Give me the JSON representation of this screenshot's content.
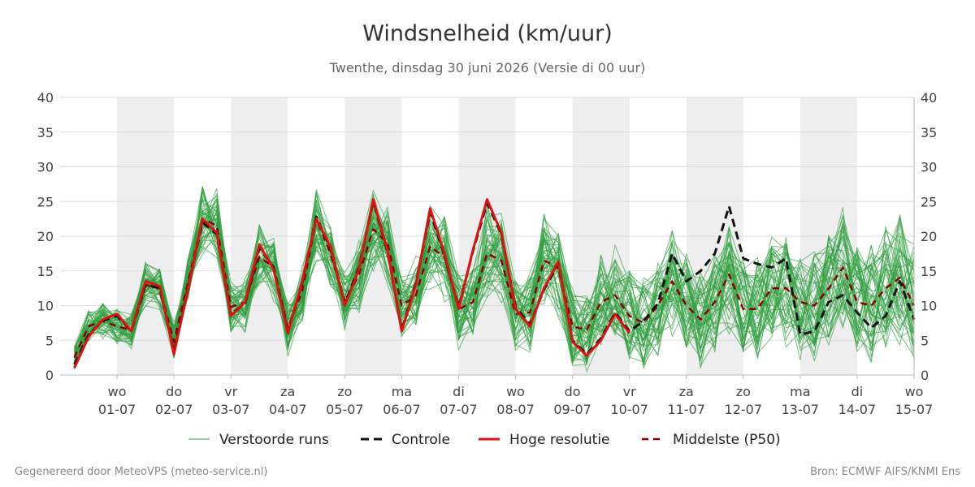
{
  "title": "Windsnelheid (km/uur)",
  "subtitle": "Twenthe, dinsdag 30 juni 2026 (Versie di 00 uur)",
  "footer_left": "Gegenereerd door MeteoVPS (meteo-service.nl)",
  "footer_right": "Bron: ECMWF AIFS/KNMI Ens",
  "colors": {
    "ensemble": "#2e9e3e",
    "control": "#111111",
    "high_res": "#e01010",
    "median": "#8b0000",
    "shade": "#eeeeee",
    "grid": "#dddddd"
  },
  "legend": [
    {
      "label": "Verstoorde runs",
      "style": "ensemble"
    },
    {
      "label": "Controle",
      "style": "control"
    },
    {
      "label": "Hoge resolutie",
      "style": "high_res"
    },
    {
      "label": "Middelste (P50)",
      "style": "median"
    }
  ],
  "chart_data": {
    "type": "line",
    "y_range": [
      0,
      40
    ],
    "y_ticks": [
      0,
      5,
      10,
      15,
      20,
      25,
      30,
      35,
      40
    ],
    "x_range_days_from_2026-06-30T00": [
      0.25,
      15.0
    ],
    "x_ticks": [
      {
        "day": "wo",
        "date": "01-07"
      },
      {
        "day": "do",
        "date": "02-07"
      },
      {
        "day": "vr",
        "date": "03-07"
      },
      {
        "day": "za",
        "date": "04-07"
      },
      {
        "day": "zo",
        "date": "05-07"
      },
      {
        "day": "ma",
        "date": "06-07"
      },
      {
        "day": "di",
        "date": "07-07"
      },
      {
        "day": "wo",
        "date": "08-07"
      },
      {
        "day": "do",
        "date": "09-07"
      },
      {
        "day": "vr",
        "date": "10-07"
      },
      {
        "day": "za",
        "date": "11-07"
      },
      {
        "day": "zo",
        "date": "12-07"
      },
      {
        "day": "ma",
        "date": "13-07"
      },
      {
        "day": "di",
        "date": "14-07"
      },
      {
        "day": "wo",
        "date": "15-07"
      }
    ],
    "shaded_days": [
      "01-07",
      "03-07",
      "05-07",
      "07-07",
      "09-07",
      "11-07",
      "13-07"
    ],
    "grid": true,
    "legend_position": "bottom",
    "series": [
      {
        "name": "Hoge resolutie",
        "x": [
          0.25,
          0.5,
          0.75,
          1.0,
          1.25,
          1.5,
          1.75,
          2.0,
          2.25,
          2.5,
          2.75,
          3.0,
          3.25,
          3.5,
          3.75,
          4.0,
          4.25,
          4.5,
          4.75,
          5.0,
          5.25,
          5.5,
          5.75,
          6.0,
          6.25,
          6.5,
          6.75,
          7.0,
          7.25,
          7.5,
          7.75,
          8.0,
          8.25,
          8.5,
          8.75,
          9.0,
          9.25,
          9.5,
          9.75,
          10.0
        ],
        "y": [
          1.0,
          5.5,
          8.0,
          8.8,
          6.3,
          13.5,
          12.8,
          3.0,
          12.5,
          22.5,
          20.5,
          8.5,
          10.5,
          18.8,
          15.2,
          6.0,
          13.5,
          22.5,
          18.5,
          10.0,
          15.2,
          25.3,
          18.0,
          6.3,
          13.0,
          24.0,
          17.5,
          9.5,
          18.0,
          25.3,
          20.5,
          9.5,
          7.0,
          12.5,
          16.3,
          4.8,
          2.8,
          5.0,
          8.8,
          6.0
        ]
      },
      {
        "name": "Controle",
        "x": [
          0.25,
          0.5,
          0.75,
          1.0,
          1.25,
          1.5,
          1.75,
          2.0,
          2.25,
          2.5,
          2.75,
          3.0,
          3.25,
          3.5,
          3.75,
          4.0,
          4.25,
          4.5,
          4.75,
          5.0,
          5.25,
          5.5,
          5.75,
          6.0,
          6.25,
          6.5,
          6.75,
          7.0,
          7.25,
          7.5,
          7.75,
          8.0,
          8.25,
          8.5,
          8.75,
          9.0,
          9.25,
          9.5,
          9.75,
          10.0,
          10.25,
          10.5,
          10.75,
          11.0,
          11.25,
          11.5,
          11.75,
          12.0,
          12.25,
          12.5,
          12.75,
          13.0,
          13.25,
          13.5,
          13.75,
          14.0,
          14.25,
          14.5,
          14.75,
          15.0
        ],
        "y": [
          1.5,
          5.8,
          7.8,
          8.5,
          6.3,
          13.0,
          12.5,
          3.3,
          12.8,
          22.0,
          20.3,
          8.8,
          10.3,
          18.3,
          15.5,
          6.2,
          13.3,
          22.8,
          18.3,
          10.3,
          15.5,
          25.0,
          17.8,
          6.5,
          13.2,
          23.5,
          17.2,
          9.8,
          17.8,
          24.8,
          20.3,
          9.8,
          7.3,
          12.3,
          16.0,
          5.0,
          3.0,
          5.3,
          9.0,
          6.3,
          7.8,
          10.3,
          17.5,
          13.5,
          15.0,
          17.5,
          24.3,
          16.8,
          16.0,
          15.5,
          16.8,
          5.8,
          6.3,
          10.5,
          11.5,
          9.0,
          6.8,
          8.5,
          13.5,
          8.0
        ]
      },
      {
        "name": "Middelste (P50)",
        "x": [
          0.25,
          0.5,
          0.75,
          1.0,
          1.25,
          1.5,
          1.75,
          2.0,
          2.25,
          2.5,
          2.75,
          3.0,
          3.25,
          3.5,
          3.75,
          4.0,
          4.25,
          4.5,
          4.75,
          5.0,
          5.25,
          5.5,
          5.75,
          6.0,
          6.25,
          6.5,
          6.75,
          7.0,
          7.25,
          7.5,
          7.75,
          8.0,
          8.25,
          8.5,
          8.75,
          9.0,
          9.25,
          9.5,
          9.75,
          10.0,
          10.25,
          10.5,
          10.75,
          11.0,
          11.25,
          11.5,
          11.75,
          12.0,
          12.25,
          12.5,
          12.75,
          13.0,
          13.25,
          13.5,
          13.75,
          14.0,
          14.25,
          14.5,
          14.75,
          15.0
        ],
        "y": [
          2.5,
          7.0,
          7.8,
          7.0,
          6.5,
          13.0,
          12.5,
          4.8,
          13.5,
          22.5,
          21.5,
          9.8,
          10.5,
          17.0,
          15.5,
          6.8,
          12.0,
          22.5,
          17.5,
          10.5,
          14.5,
          21.0,
          19.0,
          10.0,
          11.5,
          18.5,
          17.0,
          9.5,
          10.5,
          17.5,
          16.5,
          8.8,
          9.0,
          16.5,
          15.5,
          7.0,
          6.5,
          10.5,
          11.5,
          8.5,
          7.5,
          10.0,
          13.5,
          10.0,
          8.0,
          10.5,
          14.5,
          9.5,
          9.5,
          12.5,
          12.5,
          10.5,
          10.0,
          12.5,
          15.5,
          10.5,
          10.0,
          12.5,
          14.0,
          10.0
        ]
      }
    ],
    "ensemble_members": 50,
    "ensemble_note": "Verstoorde runs: many thin green perturbed-run lines around the median, spread widening with lead time"
  }
}
